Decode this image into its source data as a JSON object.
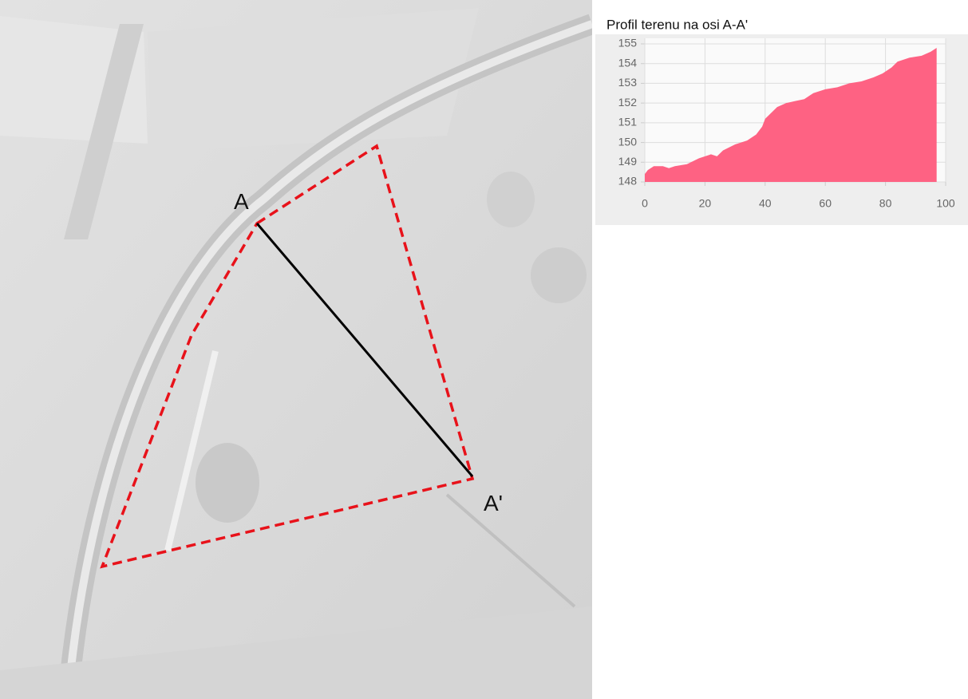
{
  "map": {
    "labels": [
      "A",
      "A'"
    ]
  },
  "chart_data": {
    "type": "area",
    "title": "Profil terenu na osi A-A'",
    "x": [
      0,
      1,
      3,
      6,
      8,
      10,
      14,
      18,
      22,
      24,
      26,
      30,
      34,
      37,
      39,
      40,
      42,
      44,
      47,
      50,
      53,
      56,
      60,
      64,
      68,
      72,
      76,
      79,
      82,
      84,
      88,
      92,
      95,
      97
    ],
    "values": [
      148.4,
      148.6,
      148.8,
      148.8,
      148.7,
      148.8,
      148.9,
      149.2,
      149.4,
      149.3,
      149.6,
      149.9,
      150.1,
      150.4,
      150.8,
      151.2,
      151.5,
      151.8,
      152.0,
      152.1,
      152.2,
      152.5,
      152.7,
      152.8,
      153.0,
      153.1,
      153.3,
      153.5,
      153.8,
      154.1,
      154.3,
      154.4,
      154.6,
      154.8
    ],
    "color": "#fe6283",
    "xlim": [
      0,
      100
    ],
    "xticks": [
      0,
      20,
      40,
      60,
      80,
      100
    ],
    "ylim": [
      148,
      155
    ],
    "yticks": [
      148,
      149,
      150,
      151,
      152,
      153,
      154,
      155
    ],
    "grid": true
  }
}
